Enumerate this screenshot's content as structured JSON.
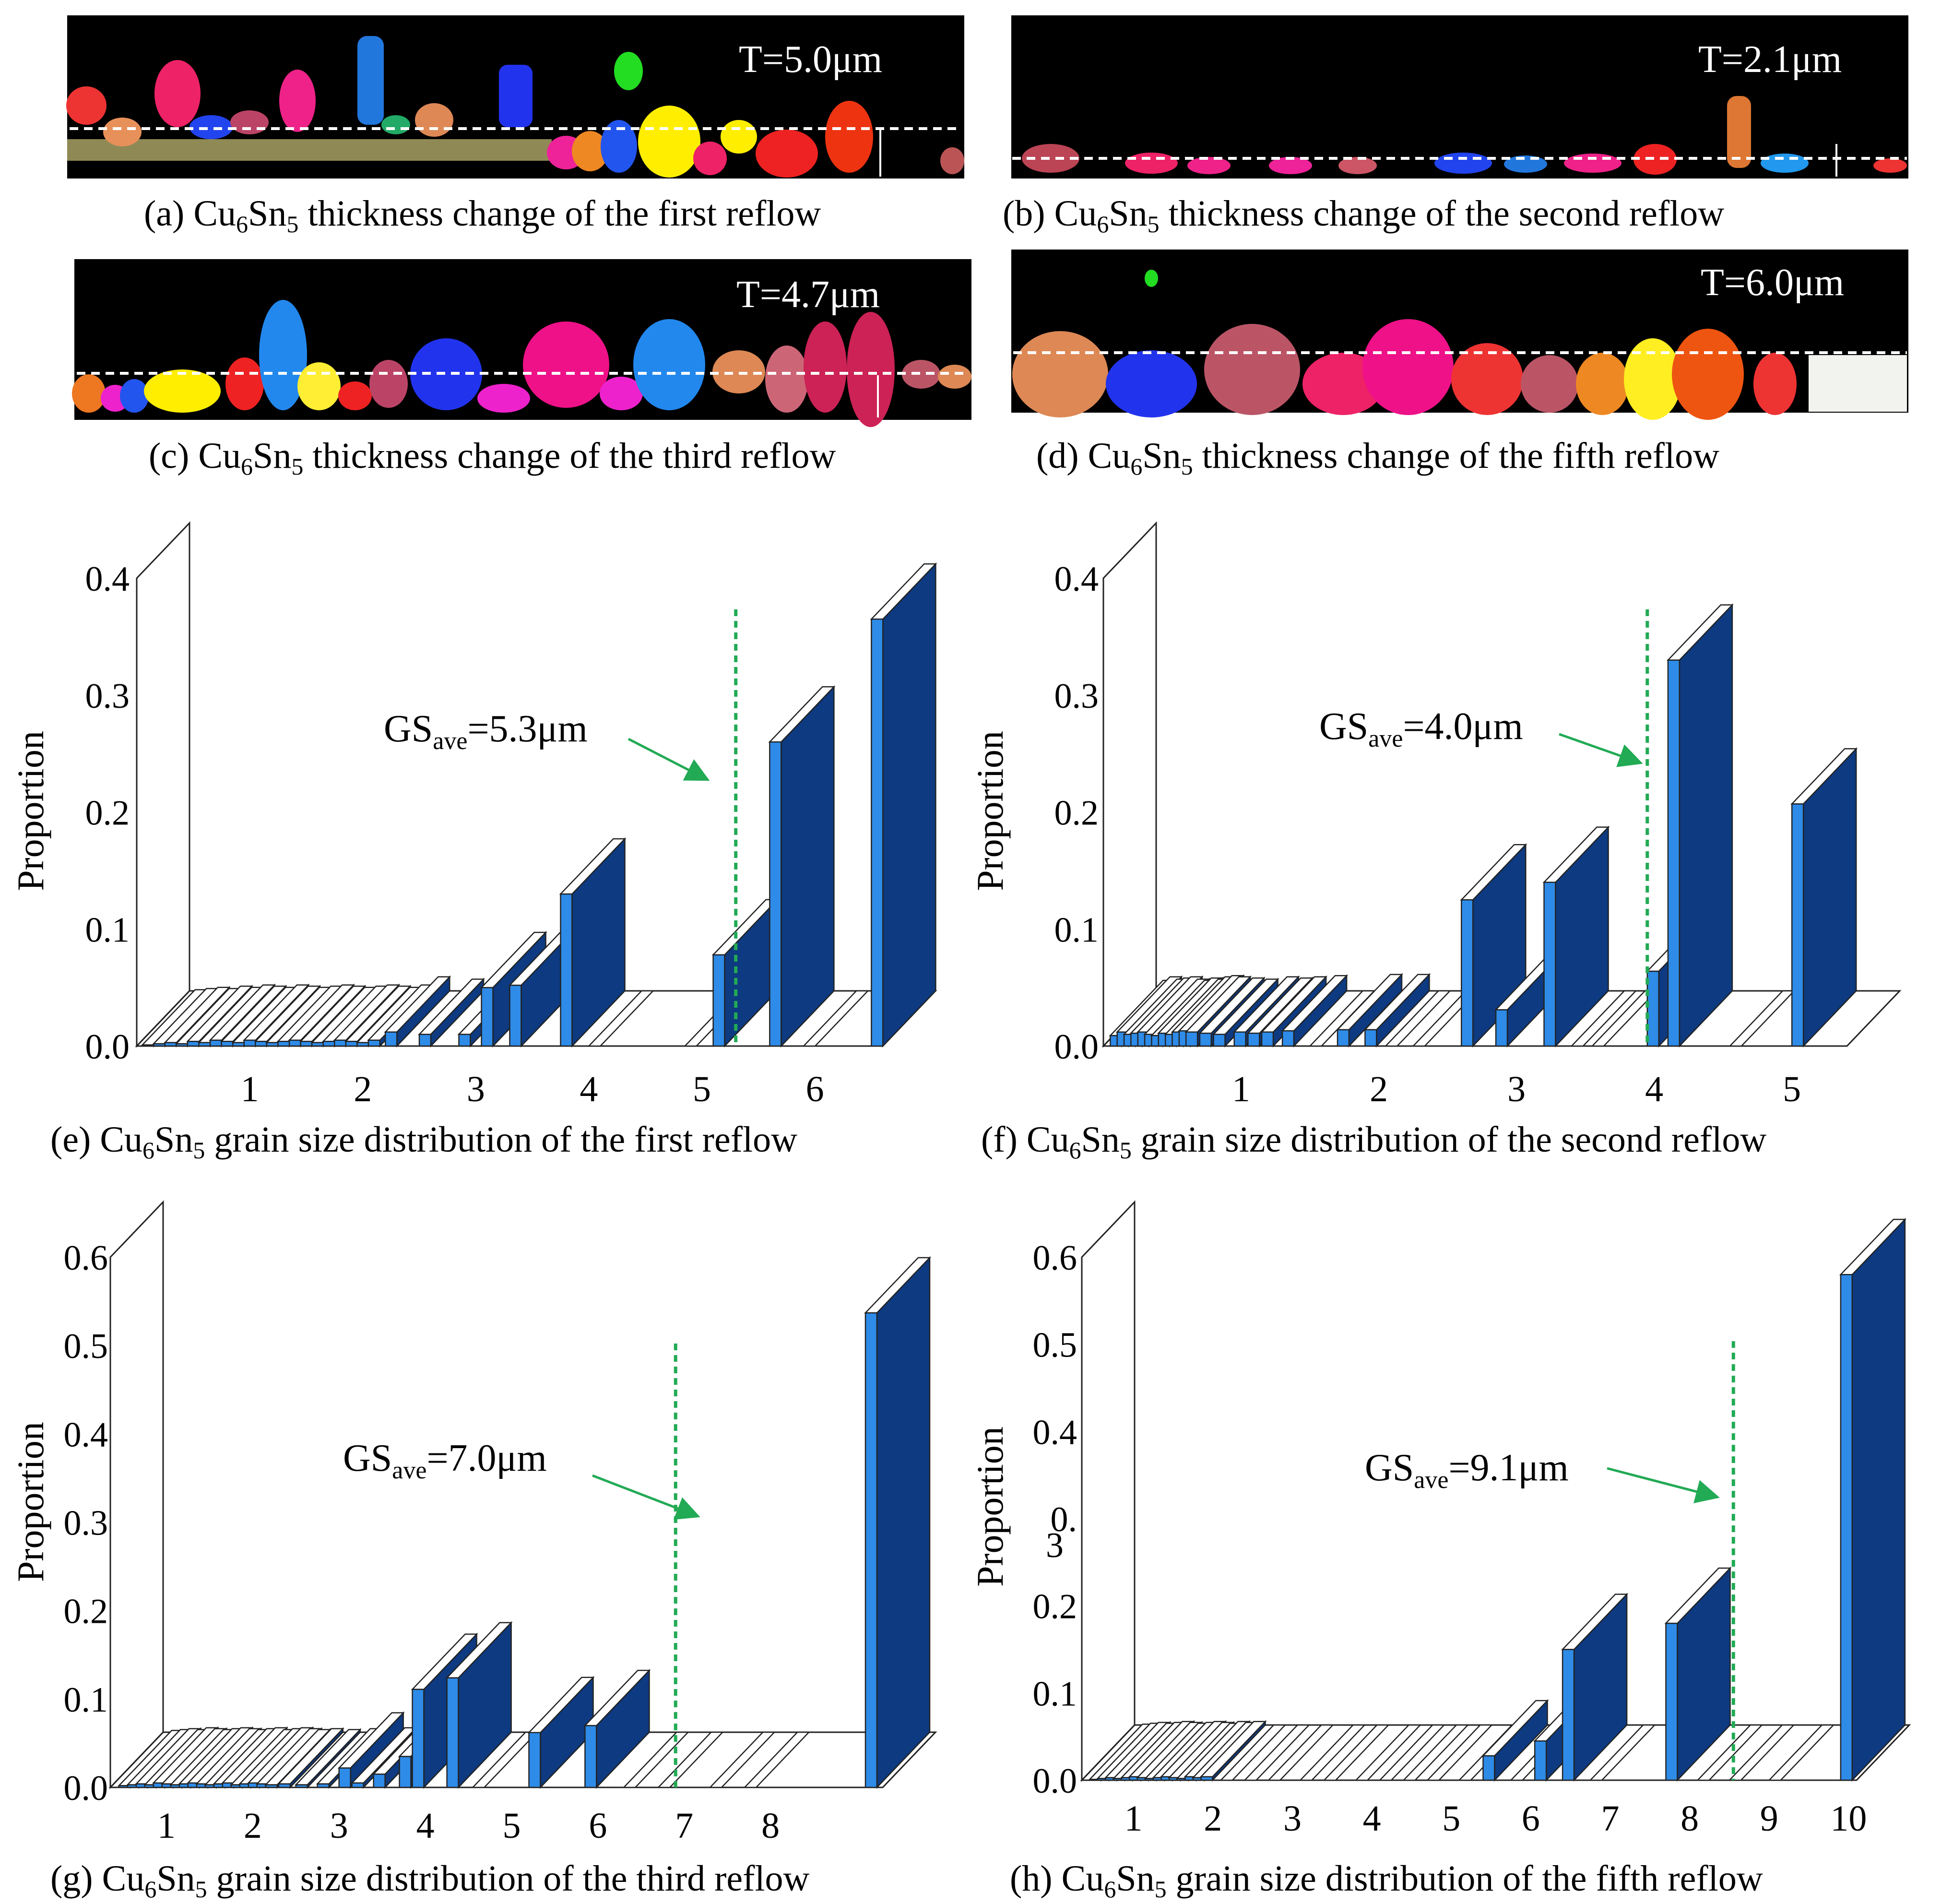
{
  "micrographs": [
    {
      "id": "a",
      "thickness": "T=5.0μm",
      "caption_prefix": "(a) Cu",
      "caption_suffix": " thickness change of the first reflow"
    },
    {
      "id": "b",
      "thickness": "T=2.1μm",
      "caption_prefix": "(b) Cu",
      "caption_suffix": " thickness change of the second reflow"
    },
    {
      "id": "c",
      "thickness": "T=4.7μm",
      "caption_prefix": "(c) Cu",
      "caption_suffix": " thickness change of the third reflow"
    },
    {
      "id": "d",
      "thickness": "T=6.0μm",
      "caption_prefix": "(d) Cu",
      "caption_suffix": " thickness change of the fifth reflow"
    }
  ],
  "formula": {
    "sub6": "6",
    "mid": "Sn",
    "sub5": "5"
  },
  "chart_data": [
    {
      "id": "e",
      "type": "bar",
      "caption_prefix": "(e) Cu",
      "caption_suffix": " grain size distribution of the first reflow",
      "ylabel": "Proportion",
      "ylim": [
        0,
        0.4
      ],
      "yticks": [
        "0.0",
        "0.1",
        "0.2",
        "0.3",
        "0.4"
      ],
      "xticks": [
        "1",
        "2",
        "3",
        "4",
        "5",
        "6"
      ],
      "xlim": [
        0.0,
        6.6
      ],
      "x": [
        0.05,
        0.15,
        0.25,
        0.35,
        0.45,
        0.55,
        0.65,
        0.75,
        0.85,
        0.95,
        1.05,
        1.15,
        1.25,
        1.35,
        1.45,
        1.55,
        1.65,
        1.75,
        1.85,
        1.95,
        2.05,
        2.2,
        2.5,
        2.85,
        3.05,
        3.3,
        3.75,
        4.0,
        4.85,
        5.1,
        5.6,
        5.9,
        6.5
      ],
      "values": [
        0.001,
        0.002,
        0.003,
        0.002,
        0.004,
        0.003,
        0.005,
        0.004,
        0.003,
        0.005,
        0.004,
        0.003,
        0.004,
        0.005,
        0.004,
        0.003,
        0.004,
        0.005,
        0.004,
        0.003,
        0.005,
        0.012,
        0.01,
        0.01,
        0.05,
        0.052,
        0.13,
        0.0,
        0.0,
        0.078,
        0.26,
        0.0,
        0.365
      ],
      "avg": {
        "x": 5.3,
        "label": "GS",
        "sub": "ave",
        "value": "=5.3μm"
      }
    },
    {
      "id": "f",
      "type": "bar",
      "caption_prefix": "(f) Cu",
      "caption_suffix": " grain size distribution of the second reflow",
      "ylabel": "Proportion",
      "ylim": [
        0,
        0.4
      ],
      "yticks": [
        "0.0",
        "0.1",
        "0.2",
        "0.3",
        "0.4"
      ],
      "xticks": [
        "1",
        "2",
        "3",
        "4",
        "5"
      ],
      "xlim": [
        0.0,
        5.4
      ],
      "x": [
        0.05,
        0.1,
        0.15,
        0.2,
        0.25,
        0.3,
        0.35,
        0.4,
        0.45,
        0.5,
        0.55,
        0.6,
        0.7,
        0.8,
        0.95,
        1.05,
        1.15,
        1.3,
        1.5,
        1.7,
        1.9,
        2.05,
        2.25,
        2.6,
        2.85,
        3.2,
        3.4,
        3.55,
        3.95,
        4.1,
        4.55,
        5.0
      ],
      "values": [
        0.009,
        0.012,
        0.01,
        0.011,
        0.012,
        0.01,
        0.009,
        0.011,
        0.01,
        0.012,
        0.013,
        0.012,
        0.011,
        0.01,
        0.012,
        0.011,
        0.012,
        0.013,
        0.0,
        0.014,
        0.014,
        0.0,
        0.0,
        0.125,
        0.031,
        0.14,
        0.0,
        0.0,
        0.064,
        0.33,
        0.0,
        0.207
      ],
      "avg": {
        "x": 3.95,
        "label": "GS",
        "sub": "ave",
        "value": "=4.0μm"
      }
    },
    {
      "id": "g",
      "type": "bar",
      "caption_prefix": "(g) Cu",
      "caption_suffix": " grain size distribution of the third reflow",
      "ylabel": "Proportion",
      "ylim": [
        0,
        0.6
      ],
      "yticks": [
        "0.0",
        "0.1",
        "0.2",
        "0.3",
        "0.4",
        "0.5",
        "0.6"
      ],
      "xticks": [
        "1",
        "2",
        "3",
        "4",
        "5",
        "6",
        "7",
        "8"
      ],
      "xlim": [
        0.35,
        9.3
      ],
      "x": [
        0.45,
        0.55,
        0.65,
        0.75,
        0.85,
        0.95,
        1.05,
        1.15,
        1.25,
        1.35,
        1.45,
        1.55,
        1.65,
        1.75,
        1.85,
        1.95,
        2.05,
        2.15,
        2.3,
        2.5,
        2.75,
        3.0,
        3.15,
        3.4,
        3.7,
        3.85,
        4.25,
        4.55,
        5.2,
        5.85,
        6.3,
        6.7,
        7.3,
        7.7,
        9.1
      ],
      "values": [
        0.002,
        0.003,
        0.004,
        0.003,
        0.005,
        0.004,
        0.003,
        0.004,
        0.005,
        0.004,
        0.003,
        0.004,
        0.005,
        0.003,
        0.004,
        0.005,
        0.004,
        0.003,
        0.004,
        0.003,
        0.004,
        0.022,
        0.005,
        0.015,
        0.035,
        0.111,
        0.124,
        0.0,
        0.062,
        0.07,
        0.0,
        0.0,
        0.0,
        0.0,
        0.537
      ],
      "avg": {
        "x": 6.9,
        "label": "GS",
        "sub": "ave",
        "value": "=7.0μm"
      }
    },
    {
      "id": "h",
      "type": "bar",
      "caption_prefix": "(h) Cu",
      "caption_suffix": " grain size distribution of the fifth reflow",
      "ylabel": "Proportion",
      "ylim": [
        0,
        0.6
      ],
      "yticks": [
        "0.0",
        "0.1",
        "0.2",
        "0.3",
        "0.4",
        "0.5",
        "0.6"
      ],
      "ytick_labels": [
        "0.0",
        "0.1",
        "0.2",
        "0.",
        "0.4",
        "0.5",
        "0.6"
      ],
      "extra_text": "3",
      "xticks": [
        "1",
        "2",
        "3",
        "4",
        "5",
        "6",
        "7",
        "8",
        "9",
        "10"
      ],
      "xlim": [
        0.35,
        10.1
      ],
      "x": [
        0.45,
        0.55,
        0.65,
        0.75,
        0.85,
        0.95,
        1.05,
        1.15,
        1.25,
        1.35,
        1.45,
        1.55,
        1.65,
        1.75,
        1.85,
        2.1,
        2.4,
        2.7,
        3.1,
        3.4,
        3.8,
        4.1,
        4.4,
        4.7,
        5.1,
        5.4,
        5.75,
        6.05,
        6.4,
        6.75,
        7.7,
        8.1,
        8.5,
        9.0,
        9.9
      ],
      "values": [
        0.001,
        0.002,
        0.003,
        0.002,
        0.003,
        0.004,
        0.003,
        0.002,
        0.003,
        0.004,
        0.003,
        0.002,
        0.004,
        0.003,
        0.004,
        0.0,
        0.0,
        0.0,
        0.0,
        0.0,
        0.0,
        0.0,
        0.0,
        0.0,
        0.0,
        0.028,
        0.0,
        0.045,
        0.15,
        0.0,
        0.18,
        0.0,
        0.0,
        0.0,
        0.58
      ],
      "avg": {
        "x": 8.55,
        "label": "GS",
        "sub": "ave",
        "value": "=9.1μm"
      }
    }
  ]
}
